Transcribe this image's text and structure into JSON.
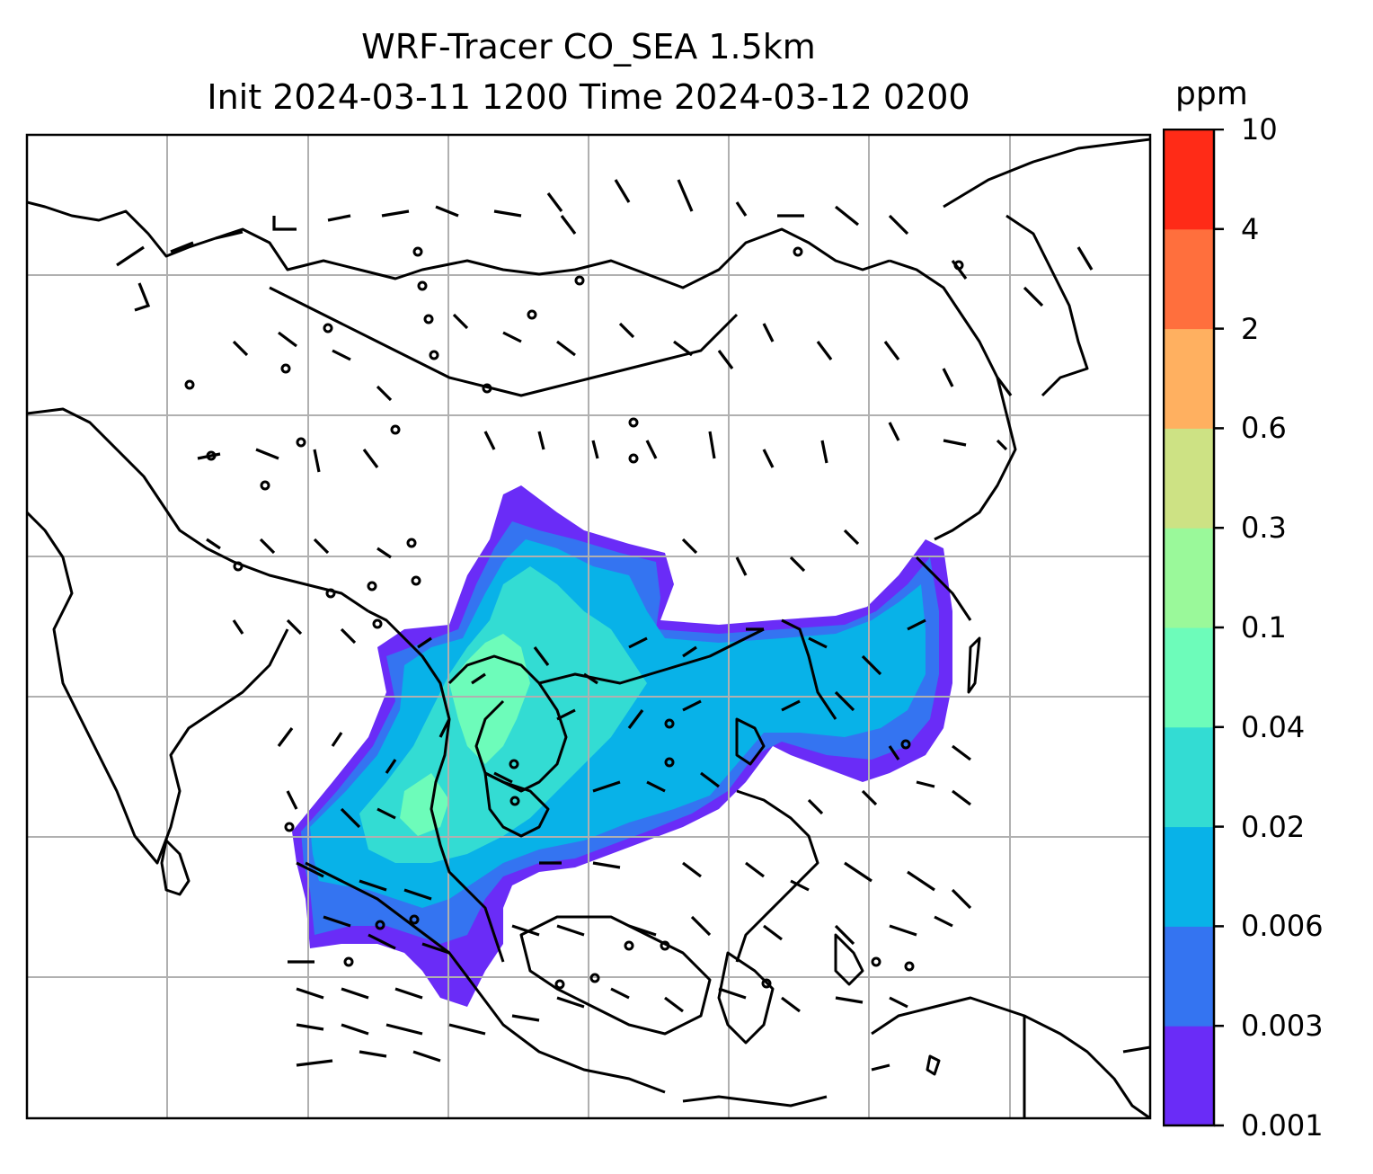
{
  "title": {
    "line1": "WRF-Tracer CO_SEA 1.5km",
    "line2": "Init 2024-03-11 1200 Time 2024-03-12 0200"
  },
  "colorbar": {
    "units": "ppm",
    "levels": [
      "0.001",
      "0.003",
      "0.006",
      "0.02",
      "0.04",
      "0.1",
      "0.3",
      "0.6",
      "2",
      "4",
      "10"
    ],
    "colors": [
      "#6a2cf7",
      "#3474f1",
      "#08b2e8",
      "#33dcd3",
      "#6dfcba",
      "#9af99a",
      "#cde284",
      "#ffb060",
      "#ff6f3d",
      "#ff2b17"
    ]
  },
  "map": {
    "background": "#ffffff",
    "gridlines": true,
    "grid_color": "#b0b0b0",
    "coastline_color": "#000000",
    "overlay": "wind barbs",
    "field": "CO tracer concentration"
  }
}
